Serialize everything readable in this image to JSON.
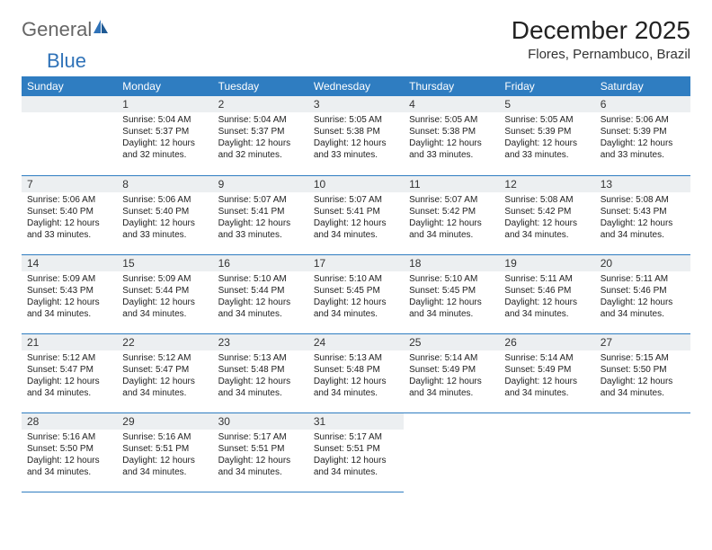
{
  "logo": {
    "text1": "General",
    "text2": "Blue"
  },
  "title": "December 2025",
  "location": "Flores, Pernambuco, Brazil",
  "colors": {
    "header_bg": "#2f7dc1",
    "header_fg": "#ffffff",
    "daynum_bg": "#eceff1",
    "rule": "#2f7dc1",
    "logo_blue": "#2f72b8"
  },
  "weekdays": [
    "Sunday",
    "Monday",
    "Tuesday",
    "Wednesday",
    "Thursday",
    "Friday",
    "Saturday"
  ],
  "start_weekday": 1,
  "days": [
    {
      "n": 1,
      "sr": "5:04 AM",
      "ss": "5:37 PM",
      "dl": "12 hours and 32 minutes."
    },
    {
      "n": 2,
      "sr": "5:04 AM",
      "ss": "5:37 PM",
      "dl": "12 hours and 32 minutes."
    },
    {
      "n": 3,
      "sr": "5:05 AM",
      "ss": "5:38 PM",
      "dl": "12 hours and 33 minutes."
    },
    {
      "n": 4,
      "sr": "5:05 AM",
      "ss": "5:38 PM",
      "dl": "12 hours and 33 minutes."
    },
    {
      "n": 5,
      "sr": "5:05 AM",
      "ss": "5:39 PM",
      "dl": "12 hours and 33 minutes."
    },
    {
      "n": 6,
      "sr": "5:06 AM",
      "ss": "5:39 PM",
      "dl": "12 hours and 33 minutes."
    },
    {
      "n": 7,
      "sr": "5:06 AM",
      "ss": "5:40 PM",
      "dl": "12 hours and 33 minutes."
    },
    {
      "n": 8,
      "sr": "5:06 AM",
      "ss": "5:40 PM",
      "dl": "12 hours and 33 minutes."
    },
    {
      "n": 9,
      "sr": "5:07 AM",
      "ss": "5:41 PM",
      "dl": "12 hours and 33 minutes."
    },
    {
      "n": 10,
      "sr": "5:07 AM",
      "ss": "5:41 PM",
      "dl": "12 hours and 34 minutes."
    },
    {
      "n": 11,
      "sr": "5:07 AM",
      "ss": "5:42 PM",
      "dl": "12 hours and 34 minutes."
    },
    {
      "n": 12,
      "sr": "5:08 AM",
      "ss": "5:42 PM",
      "dl": "12 hours and 34 minutes."
    },
    {
      "n": 13,
      "sr": "5:08 AM",
      "ss": "5:43 PM",
      "dl": "12 hours and 34 minutes."
    },
    {
      "n": 14,
      "sr": "5:09 AM",
      "ss": "5:43 PM",
      "dl": "12 hours and 34 minutes."
    },
    {
      "n": 15,
      "sr": "5:09 AM",
      "ss": "5:44 PM",
      "dl": "12 hours and 34 minutes."
    },
    {
      "n": 16,
      "sr": "5:10 AM",
      "ss": "5:44 PM",
      "dl": "12 hours and 34 minutes."
    },
    {
      "n": 17,
      "sr": "5:10 AM",
      "ss": "5:45 PM",
      "dl": "12 hours and 34 minutes."
    },
    {
      "n": 18,
      "sr": "5:10 AM",
      "ss": "5:45 PM",
      "dl": "12 hours and 34 minutes."
    },
    {
      "n": 19,
      "sr": "5:11 AM",
      "ss": "5:46 PM",
      "dl": "12 hours and 34 minutes."
    },
    {
      "n": 20,
      "sr": "5:11 AM",
      "ss": "5:46 PM",
      "dl": "12 hours and 34 minutes."
    },
    {
      "n": 21,
      "sr": "5:12 AM",
      "ss": "5:47 PM",
      "dl": "12 hours and 34 minutes."
    },
    {
      "n": 22,
      "sr": "5:12 AM",
      "ss": "5:47 PM",
      "dl": "12 hours and 34 minutes."
    },
    {
      "n": 23,
      "sr": "5:13 AM",
      "ss": "5:48 PM",
      "dl": "12 hours and 34 minutes."
    },
    {
      "n": 24,
      "sr": "5:13 AM",
      "ss": "5:48 PM",
      "dl": "12 hours and 34 minutes."
    },
    {
      "n": 25,
      "sr": "5:14 AM",
      "ss": "5:49 PM",
      "dl": "12 hours and 34 minutes."
    },
    {
      "n": 26,
      "sr": "5:14 AM",
      "ss": "5:49 PM",
      "dl": "12 hours and 34 minutes."
    },
    {
      "n": 27,
      "sr": "5:15 AM",
      "ss": "5:50 PM",
      "dl": "12 hours and 34 minutes."
    },
    {
      "n": 28,
      "sr": "5:16 AM",
      "ss": "5:50 PM",
      "dl": "12 hours and 34 minutes."
    },
    {
      "n": 29,
      "sr": "5:16 AM",
      "ss": "5:51 PM",
      "dl": "12 hours and 34 minutes."
    },
    {
      "n": 30,
      "sr": "5:17 AM",
      "ss": "5:51 PM",
      "dl": "12 hours and 34 minutes."
    },
    {
      "n": 31,
      "sr": "5:17 AM",
      "ss": "5:51 PM",
      "dl": "12 hours and 34 minutes."
    }
  ],
  "labels": {
    "sunrise": "Sunrise:",
    "sunset": "Sunset:",
    "daylight": "Daylight:"
  }
}
